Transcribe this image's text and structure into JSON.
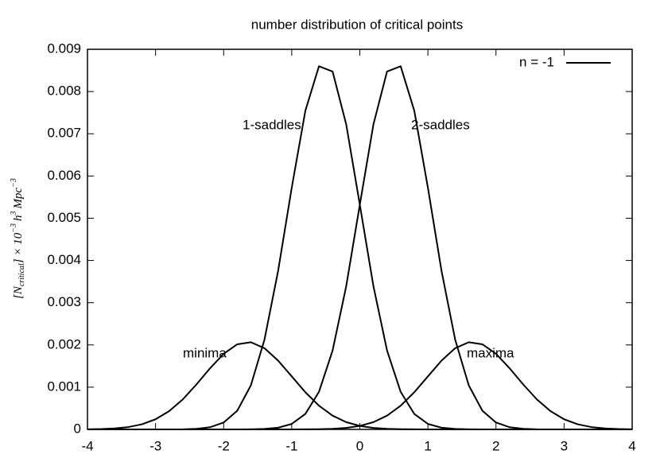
{
  "chart_data": {
    "type": "line",
    "title": "number distribution of critical points",
    "y_label_parts": [
      "[N",
      "critical",
      "] × 10",
      "−3",
      "h",
      "3",
      "Mpc",
      "−3"
    ],
    "legend": "n = -1",
    "x": [
      -4,
      -3.8,
      -3.6,
      -3.4,
      -3.2,
      -3,
      -2.8,
      -2.6,
      -2.4,
      -2.2,
      -2,
      -1.8,
      -1.6,
      -1.4,
      -1.2,
      -1,
      -0.8,
      -0.6,
      -0.4,
      -0.2,
      0,
      0.2,
      0.4,
      0.6,
      0.8,
      1,
      1.2,
      1.4,
      1.6,
      1.8,
      2,
      2.2,
      2.4,
      2.6,
      2.8,
      3,
      3.2,
      3.4,
      3.6,
      3.8,
      4
    ],
    "series": [
      {
        "name": "minima",
        "color": "#000000",
        "values": [
          3e-06,
          9e-06,
          2.3e-05,
          5.5e-05,
          0.000121,
          0.00024,
          0.000433,
          0.000711,
          0.001064,
          0.001447,
          0.00179,
          0.002015,
          0.002064,
          0.001922,
          0.001629,
          0.001256,
          0.00088,
          0.000561,
          0.000326,
          0.000172,
          8.3e-05,
          3.6e-05,
          1.4e-05,
          5e-06,
          2e-06,
          1e-06,
          0,
          0,
          0,
          0,
          0,
          0,
          0,
          0,
          0,
          0,
          0,
          0,
          0,
          0,
          0
        ]
      },
      {
        "name": "1-saddles",
        "color": "#000000",
        "values": [
          0,
          0,
          0,
          0,
          0,
          0,
          1e-06,
          3e-06,
          1.4e-05,
          5.1e-05,
          0.000163,
          0.000442,
          0.001043,
          0.002128,
          0.003753,
          0.005722,
          0.007545,
          0.008599,
          0.008475,
          0.007223,
          0.005321,
          0.00339,
          0.001867,
          0.000889,
          0.000366,
          0.00013,
          4e-05,
          1.1e-05,
          3e-06,
          1e-06,
          0,
          0,
          0,
          0,
          0,
          0,
          0,
          0,
          0,
          0,
          0
        ]
      },
      {
        "name": "2-saddles",
        "color": "#000000",
        "values": [
          0,
          0,
          0,
          0,
          0,
          0,
          0,
          0,
          0,
          0,
          0,
          1e-06,
          3e-06,
          1.1e-05,
          4e-05,
          0.00013,
          0.000366,
          0.000889,
          0.001867,
          0.00339,
          0.005321,
          0.007223,
          0.008475,
          0.008599,
          0.007545,
          0.005722,
          0.003753,
          0.002128,
          0.001043,
          0.000442,
          0.000163,
          5.1e-05,
          1.4e-05,
          3e-06,
          1e-06,
          0,
          0,
          0,
          0,
          0,
          0
        ]
      },
      {
        "name": "maxima",
        "color": "#000000",
        "values": [
          0,
          0,
          0,
          0,
          0,
          0,
          0,
          0,
          0,
          0,
          0,
          0,
          0,
          0,
          0,
          1e-06,
          2e-06,
          5e-06,
          1.4e-05,
          3.6e-05,
          8.3e-05,
          0.000172,
          0.000326,
          0.000561,
          0.00088,
          0.001256,
          0.001629,
          0.001922,
          0.002064,
          0.002015,
          0.00179,
          0.001447,
          0.001064,
          0.000711,
          0.000433,
          0.00024,
          0.000121,
          5.5e-05,
          2.3e-05,
          9e-06,
          3e-06
        ]
      }
    ],
    "xlim": [
      -4,
      4
    ],
    "xticks": [
      -4,
      -3,
      -2,
      -1,
      0,
      1,
      2,
      3,
      4
    ],
    "ylim": [
      0,
      0.009
    ],
    "yticks": [
      0,
      0.001,
      0.002,
      0.003,
      0.004,
      0.005,
      0.006,
      0.007,
      0.008,
      0.009
    ]
  }
}
